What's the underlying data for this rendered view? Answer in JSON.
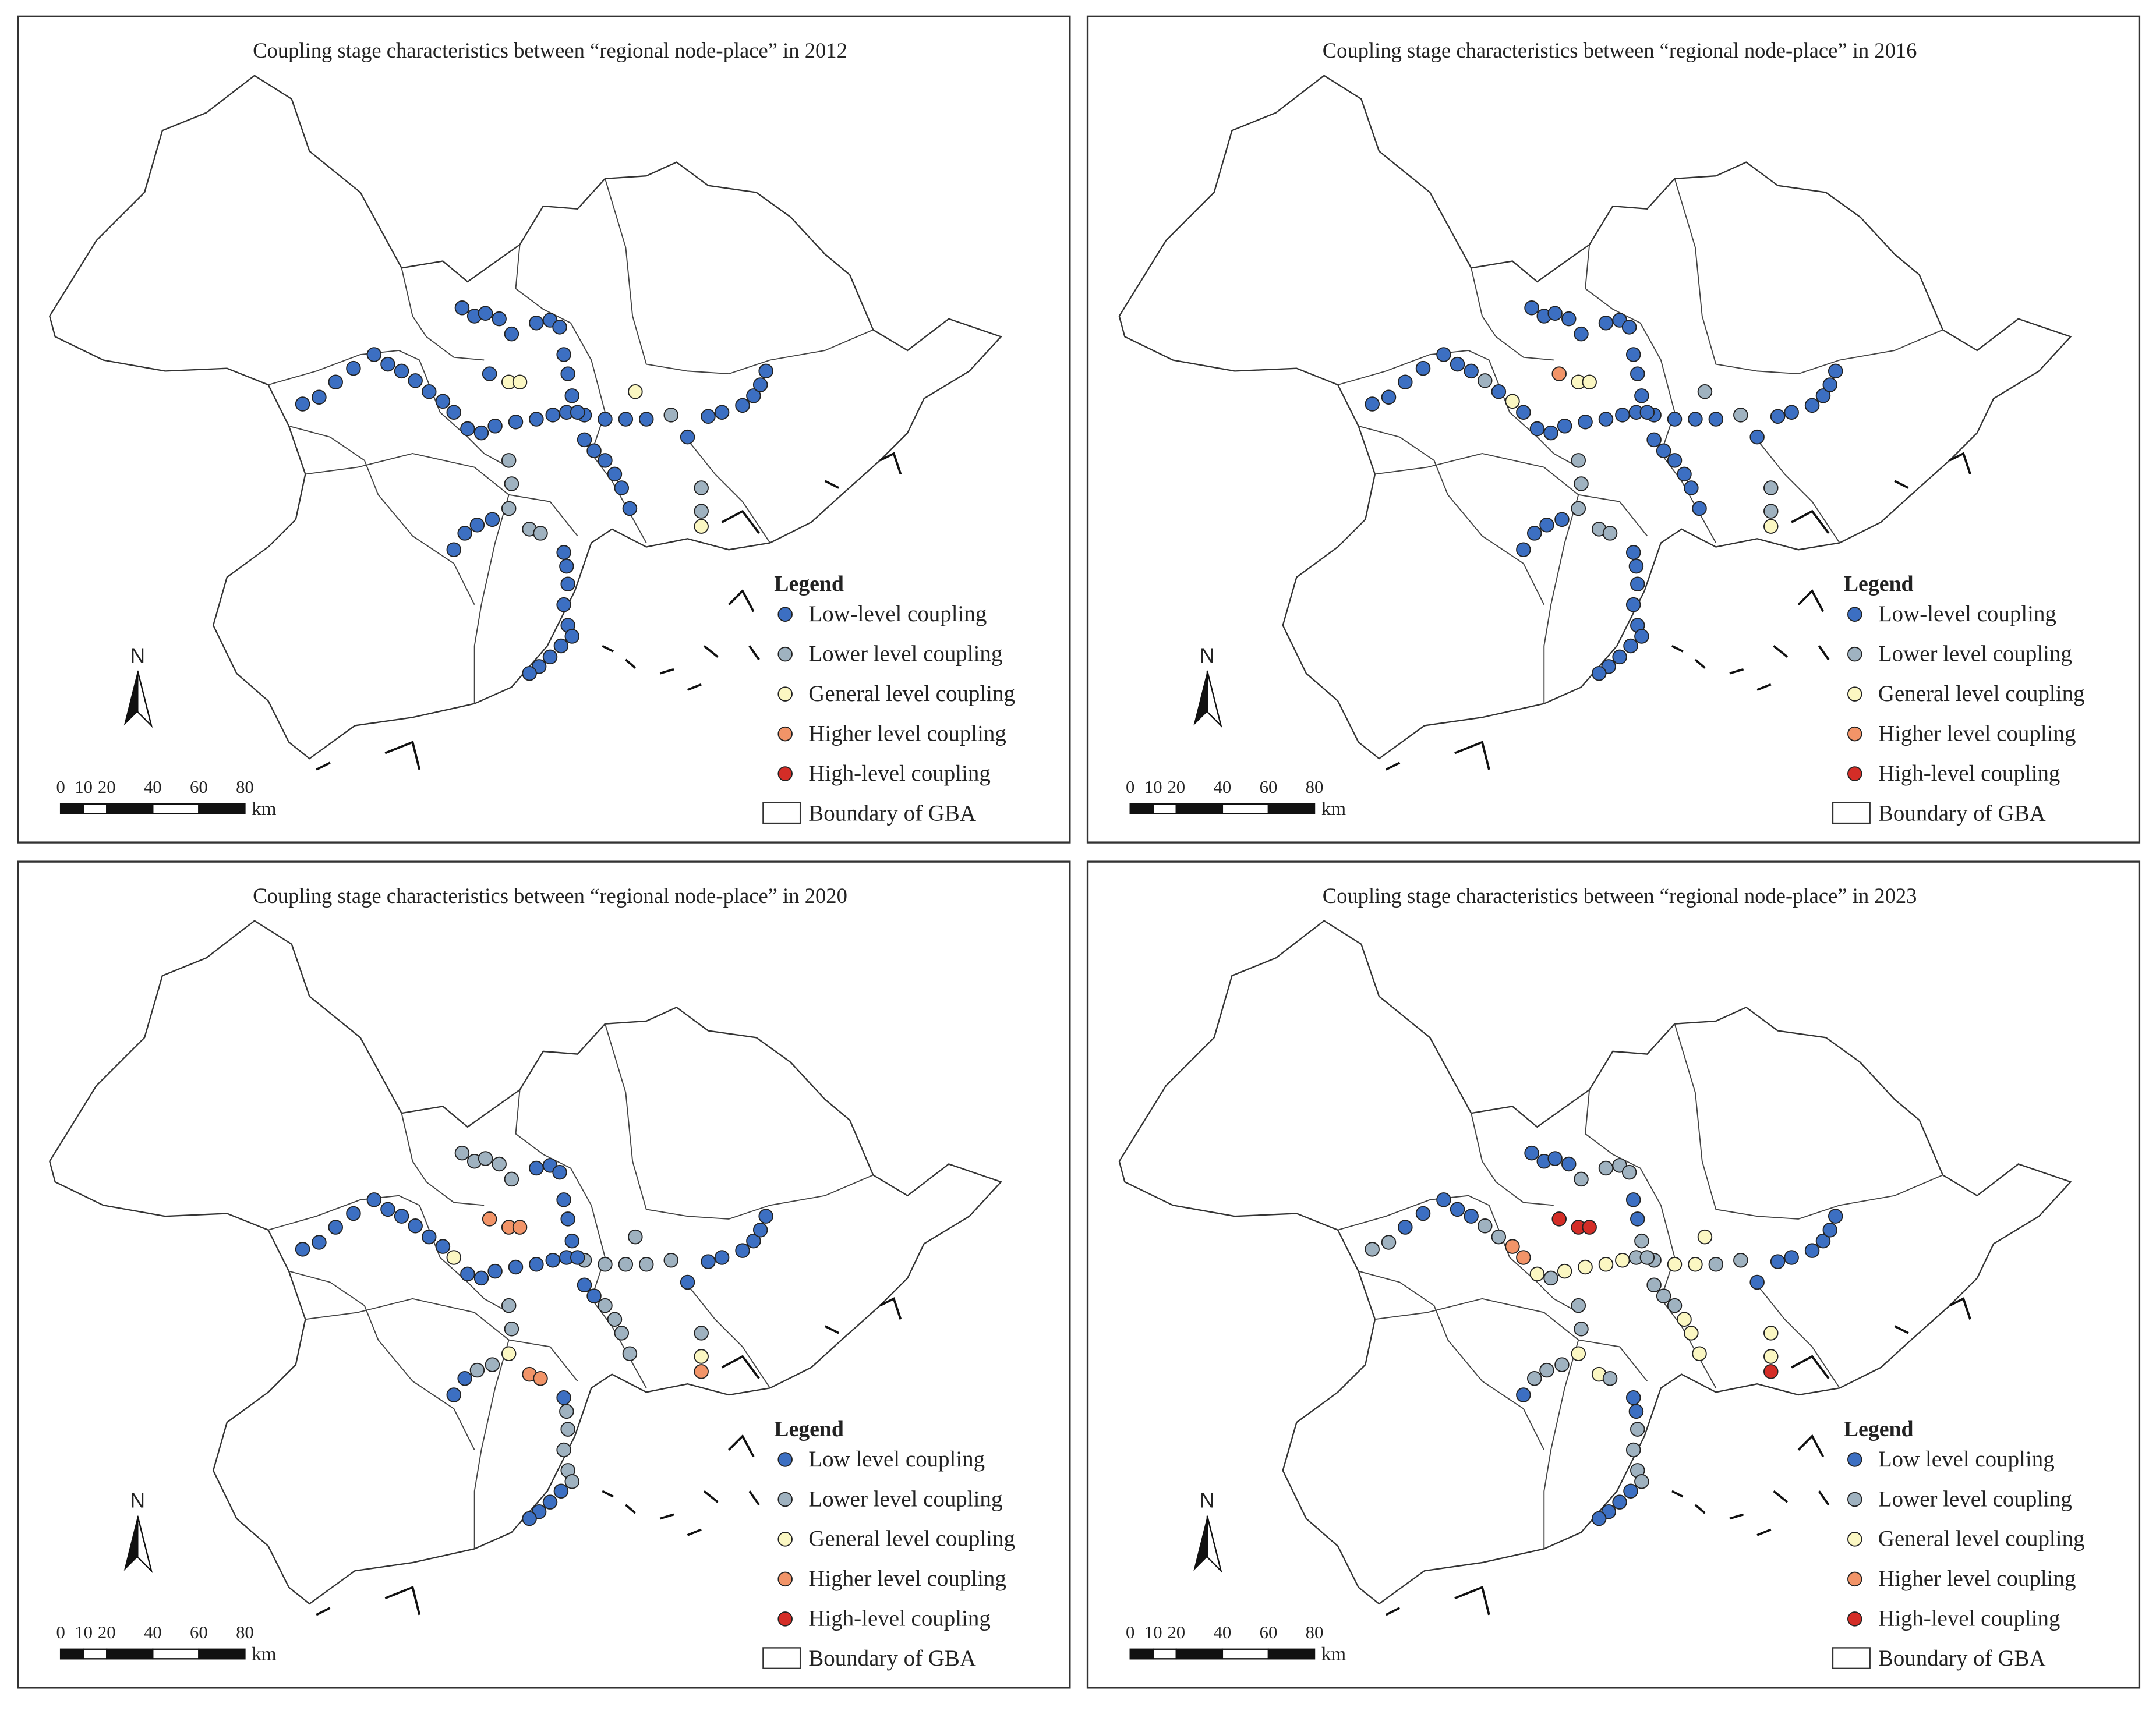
{
  "panels": [
    {
      "title": "Coupling stage characteristics between “regional node-place” in 2012",
      "legend": {
        "title": "Legend",
        "items": [
          {
            "label": "Low-level coupling",
            "color": "#3c6fc2"
          },
          {
            "label": "Lower level coupling",
            "color": "#9fb2c0"
          },
          {
            "label": "General level coupling",
            "color": "#fbf7c2"
          },
          {
            "label": "Higher level coupling",
            "color": "#f29468"
          },
          {
            "label": "High-level coupling",
            "color": "#d42d27"
          }
        ],
        "boundary_label": "Boundary of GBA"
      }
    },
    {
      "title": "Coupling stage characteristics between “regional node-place”  in 2016",
      "legend": {
        "title": "Legend",
        "items": [
          {
            "label": "Low-level coupling",
            "color": "#3c6fc2"
          },
          {
            "label": "Lower level coupling",
            "color": "#9fb2c0"
          },
          {
            "label": "General level coupling",
            "color": "#fbf7c2"
          },
          {
            "label": "Higher level coupling",
            "color": "#f29468"
          },
          {
            "label": "High-level coupling",
            "color": "#d42d27"
          }
        ],
        "boundary_label": "Boundary of GBA"
      }
    },
    {
      "title": "Coupling stage characteristics between “regional node-place” in 2020",
      "legend": {
        "title": "Legend",
        "items": [
          {
            "label": "Low level coupling",
            "color": "#3c6fc2"
          },
          {
            "label": "Lower level coupling",
            "color": "#9fb2c0"
          },
          {
            "label": "General level coupling",
            "color": "#fbf7c2"
          },
          {
            "label": "Higher level coupling",
            "color": "#f29468"
          },
          {
            "label": "High-level coupling",
            "color": "#d42d27"
          }
        ],
        "boundary_label": "Boundary of GBA"
      }
    },
    {
      "title": "Coupling stage characteristics between “regional node-place” in 2023",
      "legend": {
        "title": "Legend",
        "items": [
          {
            "label": "Low level coupling",
            "color": "#3c6fc2"
          },
          {
            "label": "Lower level coupling",
            "color": "#9fb2c0"
          },
          {
            "label": "General level coupling",
            "color": "#fbf7c2"
          },
          {
            "label": "Higher level coupling",
            "color": "#f29468"
          },
          {
            "label": "High-level coupling",
            "color": "#d42d27"
          }
        ],
        "boundary_label": "Boundary of GBA"
      }
    }
  ],
  "scale_bar": {
    "ticks": [
      0,
      10,
      20,
      40,
      60,
      80
    ],
    "unit": "km"
  },
  "north_label": "N"
}
